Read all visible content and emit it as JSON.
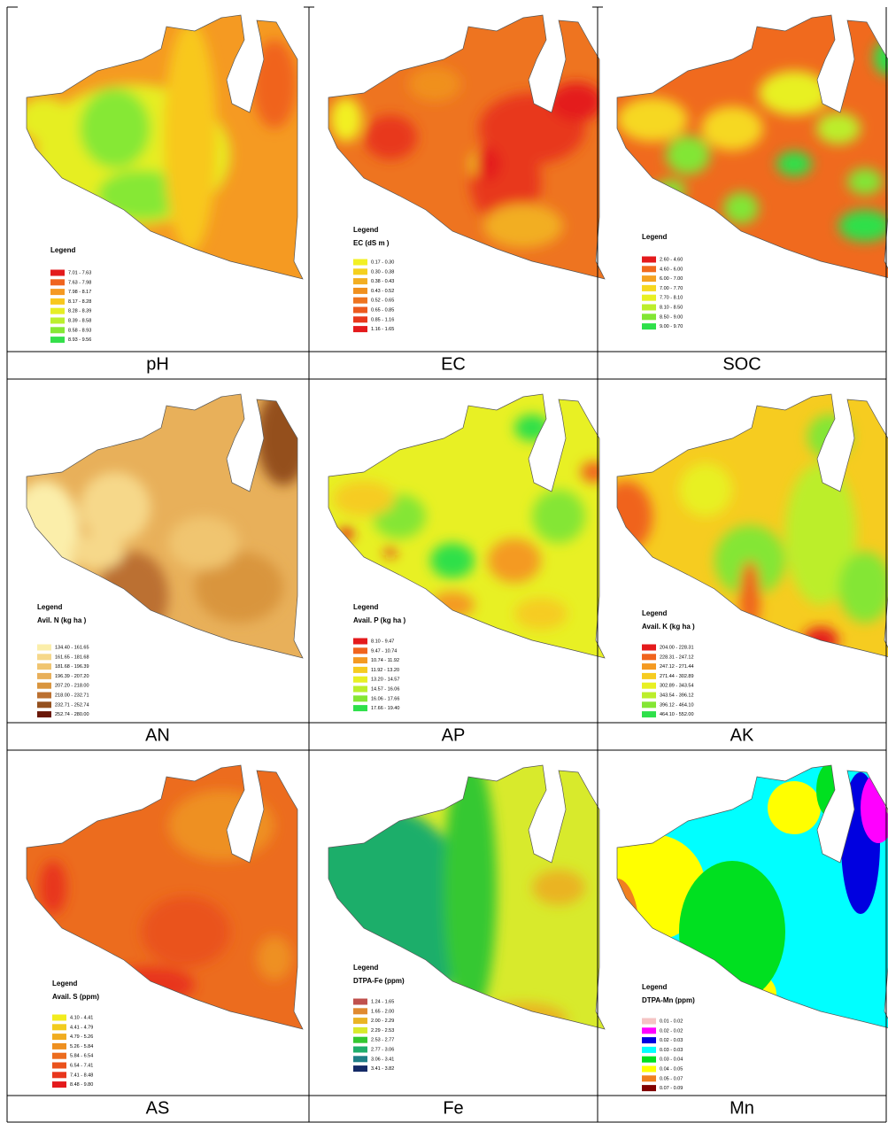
{
  "panels": [
    {
      "caption": "pH",
      "legend": {
        "heading": "Legend",
        "items": [
          {
            "label": "7.01 - 7.63",
            "color": "#e31a1c"
          },
          {
            "label": "7.63 - 7.98",
            "color": "#f0641e"
          },
          {
            "label": "7.98 - 8.17",
            "color": "#f59a22"
          },
          {
            "label": "8.17 - 8.28",
            "color": "#f8c81e"
          },
          {
            "label": "8.28 - 8.39",
            "color": "#e6ee24"
          },
          {
            "label": "8.39 - 8.58",
            "color": "#bcef2e"
          },
          {
            "label": "8.58 - 8.93",
            "color": "#86e834"
          },
          {
            "label": "8.93 - 9.56",
            "color": "#34e04a"
          }
        ]
      }
    },
    {
      "caption": "EC",
      "legend": {
        "heading": "Legend",
        "subtitle": "EC (dS m )",
        "items": [
          {
            "label": "0.17 - 0.30",
            "color": "#f2f024"
          },
          {
            "label": "0.30 - 0.38",
            "color": "#f4d01e"
          },
          {
            "label": "0.38 - 0.43",
            "color": "#f2ae22"
          },
          {
            "label": "0.43 - 0.52",
            "color": "#f0901e"
          },
          {
            "label": "0.52 - 0.65",
            "color": "#ee7420"
          },
          {
            "label": "0.65 - 0.85",
            "color": "#ec5a1e"
          },
          {
            "label": "0.85 - 1.16",
            "color": "#e8381c"
          },
          {
            "label": "1.16 - 1.65",
            "color": "#e41a1c"
          }
        ]
      }
    },
    {
      "caption": "SOC",
      "legend": {
        "heading": "Legend",
        "items": [
          {
            "label": "2.60 - 4.60",
            "color": "#e41a1c"
          },
          {
            "label": "4.60 - 6.00",
            "color": "#f06a1e"
          },
          {
            "label": "6.00 - 7.00",
            "color": "#f4a222"
          },
          {
            "label": "7.00 - 7.70",
            "color": "#f6d820"
          },
          {
            "label": "7.70 - 8.10",
            "color": "#e8f024"
          },
          {
            "label": "8.10 - 8.50",
            "color": "#bcee2c"
          },
          {
            "label": "8.50 - 9.00",
            "color": "#82e634"
          },
          {
            "label": "9.00 - 9.70",
            "color": "#2ee04a"
          }
        ]
      }
    },
    {
      "caption": "AN",
      "legend": {
        "heading": "Legend",
        "subtitle": "Avil. N (kg ha )",
        "items": [
          {
            "label": "134.40 - 161.65",
            "color": "#fbeeaa"
          },
          {
            "label": "161.65 - 181.68",
            "color": "#f6d88a"
          },
          {
            "label": "181.68 - 196.39",
            "color": "#f0c570"
          },
          {
            "label": "196.39 - 207.20",
            "color": "#e8b05a"
          },
          {
            "label": "207.20 - 218.00",
            "color": "#d9953e"
          },
          {
            "label": "218.00 - 232.71",
            "color": "#bb7030"
          },
          {
            "label": "232.71 - 252.74",
            "color": "#94501e"
          },
          {
            "label": "252.74 - 280.00",
            "color": "#6a1808"
          }
        ]
      }
    },
    {
      "caption": "AP",
      "legend": {
        "heading": "Legend",
        "subtitle": "Avail. P (kg ha )",
        "items": [
          {
            "label": "8.10 - 9.47",
            "color": "#e41a1c"
          },
          {
            "label": "9.47 - 10.74",
            "color": "#f0641e"
          },
          {
            "label": "10.74 - 11.92",
            "color": "#f49a22"
          },
          {
            "label": "11.92 - 13.20",
            "color": "#f6cc20"
          },
          {
            "label": "13.20 - 14.57",
            "color": "#e8f024"
          },
          {
            "label": "14.57 - 16.06",
            "color": "#bcee2c"
          },
          {
            "label": "16.06 - 17.66",
            "color": "#84e634"
          },
          {
            "label": "17.66 - 19.40",
            "color": "#2ee04a"
          }
        ]
      }
    },
    {
      "caption": "AK",
      "legend": {
        "heading": "Legend",
        "subtitle": "Avail. K (kg ha )",
        "items": [
          {
            "label": "204.00 - 228.31",
            "color": "#e41a1c"
          },
          {
            "label": "228.31 - 247.12",
            "color": "#f0641e"
          },
          {
            "label": "247.12 - 271.44",
            "color": "#f49a22"
          },
          {
            "label": "271.44 - 302.89",
            "color": "#f6cc20"
          },
          {
            "label": "302.89 - 343.54",
            "color": "#e8f024"
          },
          {
            "label": "343.54 - 396.12",
            "color": "#bcee2c"
          },
          {
            "label": "396.12 - 464.10",
            "color": "#84e634"
          },
          {
            "label": "464.10 - 552.00",
            "color": "#2ee04a"
          }
        ]
      }
    },
    {
      "caption": "AS",
      "legend": {
        "heading": "Legend",
        "subtitle": "Avail. S (ppm)",
        "items": [
          {
            "label": "4.10 - 4.41",
            "color": "#f2ec1e"
          },
          {
            "label": "4.41 - 4.79",
            "color": "#f2cc1e"
          },
          {
            "label": "4.79 - 5.26",
            "color": "#f0ac20"
          },
          {
            "label": "5.26 - 5.84",
            "color": "#ee9020"
          },
          {
            "label": "5.84 - 6.54",
            "color": "#ec6c1e"
          },
          {
            "label": "6.54 - 7.41",
            "color": "#ea521c"
          },
          {
            "label": "7.41 - 8.48",
            "color": "#e8361c"
          },
          {
            "label": "8.48 - 9.80",
            "color": "#e41a1c"
          }
        ]
      }
    },
    {
      "caption": "Fe",
      "legend": {
        "heading": "Legend",
        "subtitle": "DTPA-Fe (ppm)",
        "items": [
          {
            "label": "1.24 - 1.65",
            "color": "#c0504d"
          },
          {
            "label": "1.65 - 2.00",
            "color": "#e08a30"
          },
          {
            "label": "2.00 - 2.29",
            "color": "#eab424"
          },
          {
            "label": "2.29 - 2.53",
            "color": "#d8ea2c"
          },
          {
            "label": "2.53 - 2.77",
            "color": "#34c830"
          },
          {
            "label": "2.77 - 3.06",
            "color": "#1fae6a"
          },
          {
            "label": "3.06 - 3.41",
            "color": "#1f7f86"
          },
          {
            "label": "3.41 - 3.82",
            "color": "#142a66"
          }
        ]
      }
    },
    {
      "caption": "Mn",
      "legend": {
        "heading": "Legend",
        "subtitle": "DTPA-Mn (ppm)",
        "items": [
          {
            "label": "0.01 - 0.02",
            "color": "#f4c4c4"
          },
          {
            "label": "0.02 - 0.02",
            "color": "#ff00ff"
          },
          {
            "label": "0.02 - 0.03",
            "color": "#0000e0"
          },
          {
            "label": "0.03 - 0.03",
            "color": "#00ffff"
          },
          {
            "label": "0.03 - 0.04",
            "color": "#00e020"
          },
          {
            "label": "0.04 - 0.05",
            "color": "#ffff00"
          },
          {
            "label": "0.05 - 0.07",
            "color": "#f08020"
          },
          {
            "label": "0.07 - 0.09",
            "color": "#800000"
          }
        ]
      }
    }
  ]
}
